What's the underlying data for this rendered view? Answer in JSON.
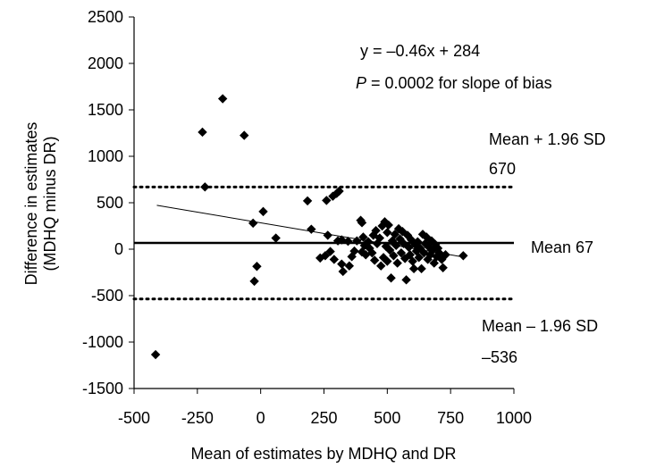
{
  "chart_data": {
    "type": "scatter",
    "xlabel": "Mean of estimates by MDHQ and DR",
    "ylabel_line1": "Difference in estimates",
    "ylabel_line2": "(MDHQ minus DR)",
    "xlim": [
      -500,
      1000
    ],
    "ylim": [
      -1500,
      2500
    ],
    "x_ticks": [
      "-500",
      "-250",
      "0",
      "250",
      "500",
      "750",
      "1000"
    ],
    "x_tick_values": [
      -500,
      -250,
      0,
      250,
      500,
      750,
      1000
    ],
    "y_ticks": [
      "2500",
      "2000",
      "1500",
      "1000",
      "500",
      "0",
      "-500",
      "-1000",
      "-1500"
    ],
    "y_tick_values": [
      2500,
      2000,
      1500,
      1000,
      500,
      0,
      -500,
      -1000,
      -1500
    ],
    "grid": false,
    "marker": "diamond",
    "marker_color": "#000000",
    "mean_line": {
      "y": 67,
      "label": "Mean 67",
      "style": "solid"
    },
    "upper_loa": {
      "y": 670,
      "label": "Mean + 1.96 SD",
      "value_label": "670",
      "style": "dotted"
    },
    "lower_loa": {
      "y": -536,
      "label": "Mean – 1.96 SD",
      "value_label": "–536",
      "style": "dotted"
    },
    "regression": {
      "slope": -0.46,
      "intercept": 284,
      "x_range": [
        -410,
        800
      ],
      "equation": "y = –0.46x + 284",
      "p_prefix": "P",
      "p_text": " = 0.0002 for slope of bias"
    },
    "points": [
      {
        "x": -415,
        "y": -1135
      },
      {
        "x": -230,
        "y": 1260
      },
      {
        "x": -220,
        "y": 670
      },
      {
        "x": -150,
        "y": 1620
      },
      {
        "x": -65,
        "y": 1225
      },
      {
        "x": -30,
        "y": 280
      },
      {
        "x": -25,
        "y": -345
      },
      {
        "x": -15,
        "y": -185
      },
      {
        "x": 10,
        "y": 405
      },
      {
        "x": 60,
        "y": 120
      },
      {
        "x": 185,
        "y": 520
      },
      {
        "x": 200,
        "y": 215
      },
      {
        "x": 235,
        "y": -95
      },
      {
        "x": 255,
        "y": -70
      },
      {
        "x": 260,
        "y": 525
      },
      {
        "x": 265,
        "y": 150
      },
      {
        "x": 275,
        "y": -25
      },
      {
        "x": 285,
        "y": 570
      },
      {
        "x": 290,
        "y": -110
      },
      {
        "x": 300,
        "y": 600
      },
      {
        "x": 305,
        "y": 90
      },
      {
        "x": 310,
        "y": 625
      },
      {
        "x": 320,
        "y": -160
      },
      {
        "x": 320,
        "y": 100
      },
      {
        "x": 325,
        "y": -240
      },
      {
        "x": 345,
        "y": 85
      },
      {
        "x": 350,
        "y": -180
      },
      {
        "x": 360,
        "y": -80
      },
      {
        "x": 370,
        "y": -20
      },
      {
        "x": 380,
        "y": 90
      },
      {
        "x": 395,
        "y": 310
      },
      {
        "x": 400,
        "y": 285
      },
      {
        "x": 400,
        "y": -30
      },
      {
        "x": 405,
        "y": 130
      },
      {
        "x": 410,
        "y": 40
      },
      {
        "x": 415,
        "y": -60
      },
      {
        "x": 425,
        "y": 80
      },
      {
        "x": 430,
        "y": 10
      },
      {
        "x": 440,
        "y": -40
      },
      {
        "x": 445,
        "y": 150
      },
      {
        "x": 450,
        "y": -120
      },
      {
        "x": 455,
        "y": 200
      },
      {
        "x": 460,
        "y": 60
      },
      {
        "x": 470,
        "y": 120
      },
      {
        "x": 475,
        "y": -180
      },
      {
        "x": 480,
        "y": 250
      },
      {
        "x": 485,
        "y": -90
      },
      {
        "x": 490,
        "y": 295
      },
      {
        "x": 495,
        "y": 30
      },
      {
        "x": 500,
        "y": 180
      },
      {
        "x": 500,
        "y": -130
      },
      {
        "x": 505,
        "y": 260
      },
      {
        "x": 510,
        "y": -10
      },
      {
        "x": 515,
        "y": -310
      },
      {
        "x": 520,
        "y": 90
      },
      {
        "x": 525,
        "y": -70
      },
      {
        "x": 530,
        "y": 160
      },
      {
        "x": 535,
        "y": 40
      },
      {
        "x": 540,
        "y": -150
      },
      {
        "x": 545,
        "y": 220
      },
      {
        "x": 550,
        "y": 110
      },
      {
        "x": 555,
        "y": -40
      },
      {
        "x": 560,
        "y": 190
      },
      {
        "x": 565,
        "y": 60
      },
      {
        "x": 570,
        "y": -100
      },
      {
        "x": 575,
        "y": -330
      },
      {
        "x": 580,
        "y": 150
      },
      {
        "x": 585,
        "y": 20
      },
      {
        "x": 590,
        "y": -60
      },
      {
        "x": 595,
        "y": 100
      },
      {
        "x": 600,
        "y": -130
      },
      {
        "x": 605,
        "y": -210
      },
      {
        "x": 610,
        "y": 50
      },
      {
        "x": 615,
        "y": -20
      },
      {
        "x": 620,
        "y": 80
      },
      {
        "x": 625,
        "y": -90
      },
      {
        "x": 630,
        "y": 10
      },
      {
        "x": 635,
        "y": -210
      },
      {
        "x": 640,
        "y": 160
      },
      {
        "x": 645,
        "y": -40
      },
      {
        "x": 650,
        "y": 60
      },
      {
        "x": 655,
        "y": 130
      },
      {
        "x": 660,
        "y": -110
      },
      {
        "x": 665,
        "y": 20
      },
      {
        "x": 670,
        "y": -60
      },
      {
        "x": 675,
        "y": 90
      },
      {
        "x": 680,
        "y": -10
      },
      {
        "x": 685,
        "y": -150
      },
      {
        "x": 690,
        "y": 50
      },
      {
        "x": 695,
        "y": -80
      },
      {
        "x": 700,
        "y": 10
      },
      {
        "x": 705,
        "y": -40
      },
      {
        "x": 715,
        "y": -110
      },
      {
        "x": 720,
        "y": -200
      },
      {
        "x": 730,
        "y": -60
      },
      {
        "x": 800,
        "y": -70
      }
    ]
  }
}
